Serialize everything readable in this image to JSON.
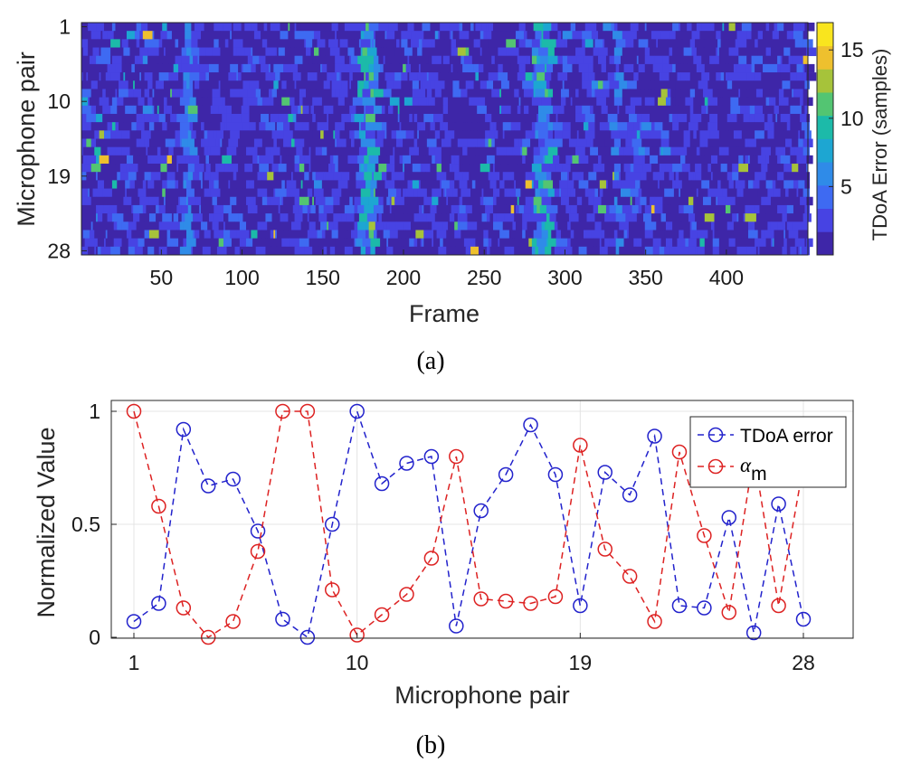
{
  "panel_a": {
    "caption": "(a)",
    "chart_data": {
      "type": "heatmap",
      "xlabel": "Frame",
      "ylabel": "Microphone pair",
      "x_range": [
        1,
        450
      ],
      "y_range": [
        1,
        28
      ],
      "x_ticks": [
        "50",
        "100",
        "150",
        "200",
        "250",
        "300",
        "350",
        "400"
      ],
      "y_ticks": [
        "1",
        "10",
        "19",
        "28"
      ],
      "colorbar": {
        "label": "TDoA Error (samples)",
        "range": [
          0,
          17
        ],
        "ticks": [
          "5",
          "10",
          "15"
        ],
        "colormap": "parula",
        "colors": [
          "#3e26a8",
          "#4743e3",
          "#3e6af2",
          "#2f8be8",
          "#1da6d2",
          "#1cbaa9",
          "#53c572",
          "#a6c33a",
          "#eec02e",
          "#f9e51e"
        ]
      },
      "high_error_frame_bands": [
        {
          "frames": [
            62,
            68
          ],
          "level": "medium"
        },
        {
          "frames": [
            172,
            182
          ],
          "level": "high"
        },
        {
          "frames": [
            280,
            290
          ],
          "level": "high"
        },
        {
          "frames": [
            330,
            332
          ],
          "level": "medium"
        }
      ]
    }
  },
  "panel_b": {
    "caption": "(b)",
    "chart_data": {
      "type": "line",
      "xlabel": "Microphone pair",
      "ylabel": "Normalized Value",
      "xlim": [
        1,
        28
      ],
      "ylim": [
        0,
        1
      ],
      "x_ticks": [
        "1",
        "10",
        "19",
        "28"
      ],
      "y_ticks": [
        "0",
        "0.5",
        "1"
      ],
      "grid": true,
      "legend_position": "top-right",
      "x": [
        1,
        2,
        3,
        4,
        5,
        6,
        7,
        8,
        9,
        10,
        11,
        12,
        13,
        14,
        15,
        16,
        17,
        18,
        19,
        20,
        21,
        22,
        23,
        24,
        25,
        26,
        27,
        28
      ],
      "series": [
        {
          "name": "TDoA error",
          "color": "#2222cc",
          "values": [
            0.07,
            0.15,
            0.92,
            0.67,
            0.7,
            0.47,
            0.08,
            0.0,
            0.5,
            1.0,
            0.68,
            0.77,
            0.8,
            0.05,
            0.56,
            0.72,
            0.94,
            0.72,
            0.14,
            0.73,
            0.63,
            0.89,
            0.14,
            0.13,
            0.53,
            0.02,
            0.59,
            0.08
          ]
        },
        {
          "name_main": "α",
          "name_sub": "m",
          "color": "#dd2222",
          "values": [
            1.0,
            0.58,
            0.13,
            0.0,
            0.07,
            0.38,
            1.0,
            1.0,
            0.21,
            0.01,
            0.1,
            0.19,
            0.35,
            0.8,
            0.17,
            0.16,
            0.15,
            0.18,
            0.85,
            0.39,
            0.27,
            0.07,
            0.82,
            0.45,
            0.11,
            0.81,
            0.14,
            0.76
          ]
        }
      ]
    }
  }
}
